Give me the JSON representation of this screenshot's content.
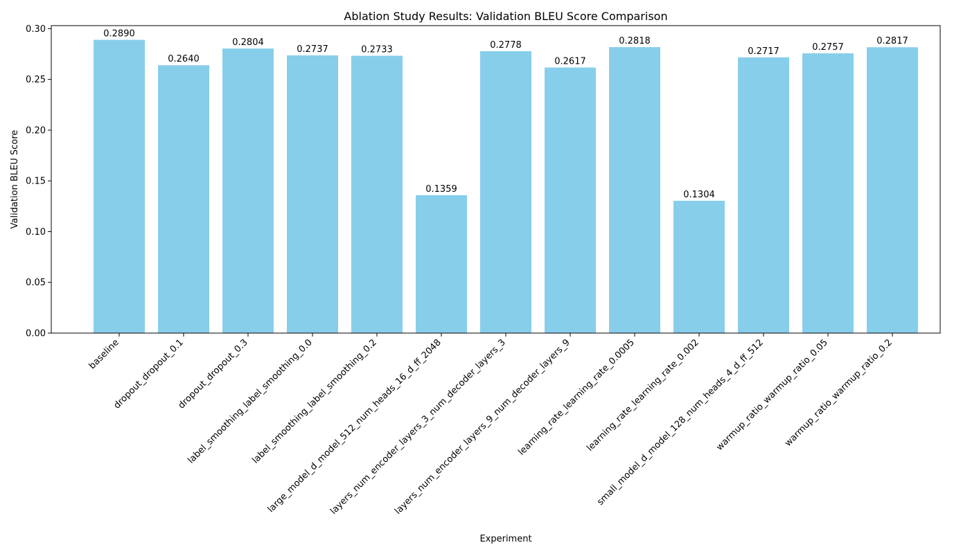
{
  "chart_data": {
    "type": "bar",
    "title": "Ablation Study Results: Validation BLEU Score Comparison",
    "xlabel": "Experiment",
    "ylabel": "Validation BLEU Score",
    "ylim": [
      0,
      0.303
    ],
    "yticks": [
      0.0,
      0.05,
      0.1,
      0.15,
      0.2,
      0.25,
      0.3
    ],
    "ytick_labels": [
      "0.00",
      "0.05",
      "0.10",
      "0.15",
      "0.20",
      "0.25",
      "0.30"
    ],
    "grid": false,
    "bar_color": "#87CEEB",
    "categories": [
      "baseline",
      "dropout_dropout_0.1",
      "dropout_dropout_0.3",
      "label_smoothing_label_smoothing_0.0",
      "label_smoothing_label_smoothing_0.2",
      "large_model_d_model_512_num_heads_16_d_ff_2048",
      "layers_num_encoder_layers_3_num_decoder_layers_3",
      "layers_num_encoder_layers_9_num_decoder_layers_9",
      "learning_rate_learning_rate_0.0005",
      "learning_rate_learning_rate_0.002",
      "small_model_d_model_128_num_heads_4_d_ff_512",
      "warmup_ratio_warmup_ratio_0.05",
      "warmup_ratio_warmup_ratio_0.2"
    ],
    "values": [
      0.289,
      0.264,
      0.2804,
      0.2737,
      0.2733,
      0.1359,
      0.2778,
      0.2617,
      0.2818,
      0.1304,
      0.2717,
      0.2757,
      0.2817
    ],
    "value_labels": [
      "0.2890",
      "0.2640",
      "0.2804",
      "0.2737",
      "0.2733",
      "0.1359",
      "0.2778",
      "0.2617",
      "0.2818",
      "0.1304",
      "0.2717",
      "0.2757",
      "0.2817"
    ]
  }
}
